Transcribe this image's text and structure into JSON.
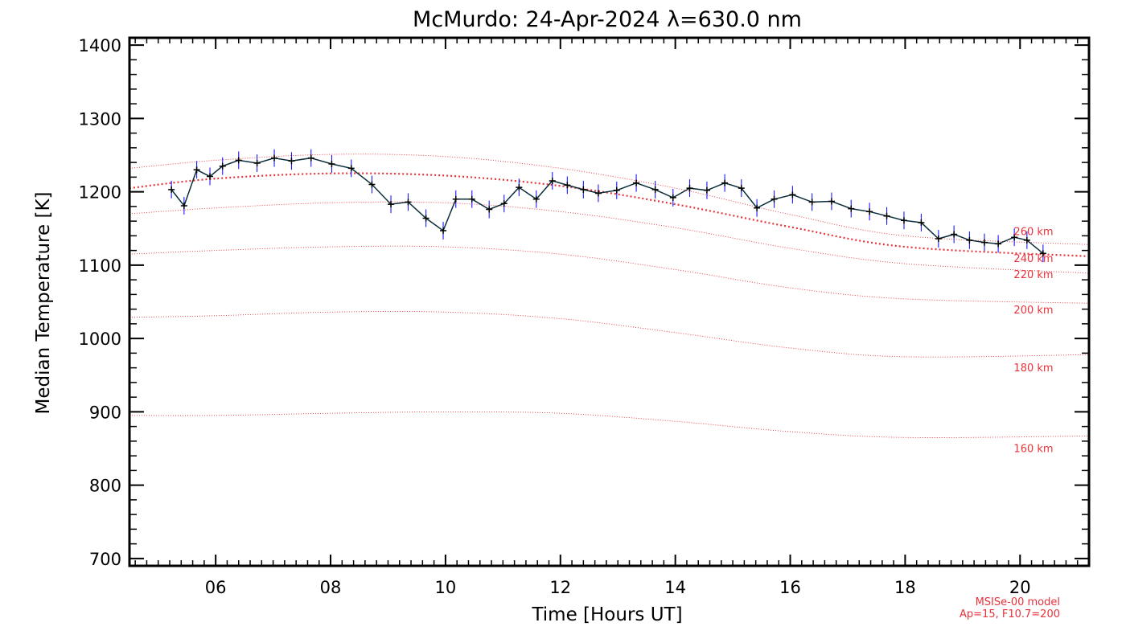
{
  "colors": {
    "model": "#e8333b",
    "data_line": "#0b2d3a",
    "error_bar": "#1a1aff",
    "marker": "#000000",
    "axes": "#000000"
  },
  "chart_data": {
    "type": "line",
    "title": "McMurdo: 24-Apr-2024 λ=630.0 nm",
    "xlabel": "Time [Hours UT]",
    "ylabel": "Median Temperature [K]",
    "xlim": [
      4.5,
      21.2
    ],
    "ylim": [
      690,
      1410
    ],
    "x_ticks": [
      6,
      8,
      10,
      12,
      14,
      16,
      18,
      20
    ],
    "x_tick_labels": [
      "06",
      "08",
      "10",
      "12",
      "14",
      "16",
      "18",
      "20"
    ],
    "y_ticks": [
      700,
      800,
      900,
      1000,
      1100,
      1200,
      1300,
      1400
    ],
    "y_tick_labels": [
      "700",
      "800",
      "900",
      "1000",
      "1100",
      "1200",
      "1300",
      "1400"
    ],
    "model_note": [
      "MSISe-00 model",
      "Ap=15, F10.7=200"
    ],
    "measurements": {
      "x": [
        5.23,
        5.45,
        5.67,
        5.9,
        6.12,
        6.4,
        6.72,
        7.02,
        7.32,
        7.66,
        8.02,
        8.36,
        8.72,
        9.05,
        9.35,
        9.66,
        9.96,
        10.18,
        10.46,
        10.76,
        11.02,
        11.28,
        11.58,
        11.86,
        12.12,
        12.4,
        12.66,
        12.98,
        13.32,
        13.65,
        13.96,
        14.25,
        14.55,
        14.86,
        15.15,
        15.42,
        15.72,
        16.04,
        16.38,
        16.72,
        17.06,
        17.38,
        17.68,
        17.98,
        18.28,
        18.58,
        18.85,
        19.12,
        19.38,
        19.62,
        19.9,
        20.12,
        20.4
      ],
      "y": [
        1203,
        1181,
        1230,
        1221,
        1235,
        1243,
        1239,
        1246,
        1242,
        1246,
        1238,
        1232,
        1210,
        1183,
        1186,
        1164,
        1147,
        1190,
        1190,
        1176,
        1184,
        1206,
        1190,
        1215,
        1209,
        1203,
        1198,
        1202,
        1212,
        1203,
        1192,
        1205,
        1202,
        1212,
        1205,
        1178,
        1190,
        1196,
        1186,
        1187,
        1177,
        1173,
        1167,
        1161,
        1158,
        1136,
        1142,
        1134,
        1131,
        1129,
        1138,
        1134,
        1116
      ],
      "error": 12
    },
    "series": [
      {
        "name": "160 km",
        "label": "160 km",
        "bold": false,
        "x": [
          4.5,
          6,
          8,
          10,
          12,
          14,
          16,
          18,
          21.2
        ],
        "y": [
          895,
          895,
          898,
          900,
          898,
          887,
          873,
          865,
          867
        ]
      },
      {
        "name": "180 km",
        "label": "180 km",
        "bold": false,
        "x": [
          4.5,
          6,
          8,
          10,
          12,
          14,
          16,
          18,
          21.2
        ],
        "y": [
          1029,
          1031,
          1036,
          1036,
          1027,
          1008,
          987,
          975,
          978
        ]
      },
      {
        "name": "200 km",
        "label": "200 km",
        "bold": false,
        "x": [
          4.5,
          6,
          8,
          10,
          12,
          14,
          16,
          18,
          21.2
        ],
        "y": [
          1115,
          1120,
          1125,
          1125,
          1115,
          1094,
          1069,
          1054,
          1048
        ]
      },
      {
        "name": "220 km",
        "label": "220 km",
        "bold": false,
        "x": [
          4.5,
          6,
          8,
          10,
          12,
          14,
          16,
          18,
          21.2
        ],
        "y": [
          1170,
          1178,
          1185,
          1185,
          1173,
          1151,
          1123,
          1102,
          1089
        ]
      },
      {
        "name": "240 km",
        "label": "240 km",
        "bold": true,
        "x": [
          4.5,
          6,
          8,
          10,
          12,
          14,
          16,
          18,
          21.2
        ],
        "y": [
          1205,
          1218,
          1225,
          1222,
          1208,
          1183,
          1152,
          1125,
          1112
        ]
      },
      {
        "name": "260 km",
        "label": "260 km",
        "bold": false,
        "x": [
          4.5,
          6,
          8,
          10,
          12,
          14,
          16,
          18,
          21.2
        ],
        "y": [
          1232,
          1243,
          1251,
          1248,
          1232,
          1205,
          1169,
          1140,
          1128
        ]
      }
    ]
  }
}
